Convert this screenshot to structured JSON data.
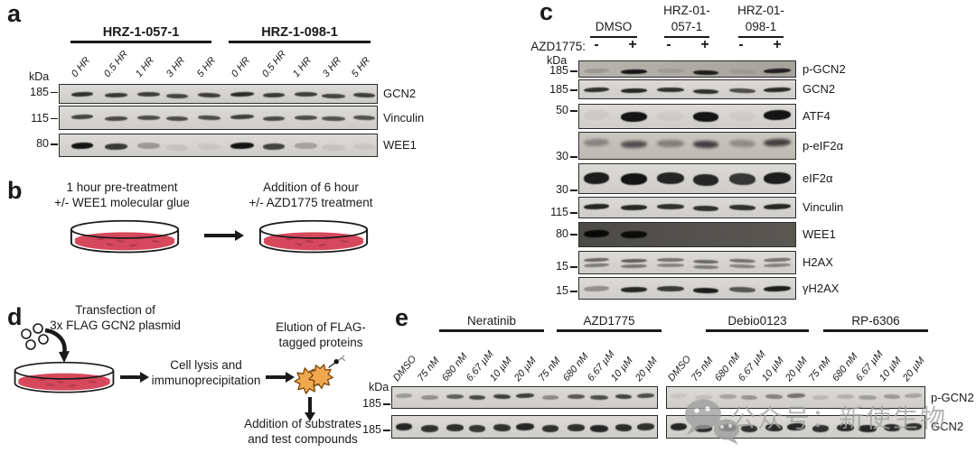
{
  "panels": {
    "a": {
      "label": "a",
      "group_headers": [
        "HRZ-1-057-1",
        "HRZ-1-098-1"
      ],
      "kda_label": "kDa",
      "lane_labels": [
        "0 HR",
        "0.5 HR",
        "1 HR",
        "3 HR",
        "5 HR",
        "0 HR",
        "0.5 HR",
        "1 HR",
        "3 HR",
        "5 HR"
      ],
      "strips": [
        {
          "marker": "185",
          "label": "GCN2",
          "bands": [
            0.85,
            0.8,
            0.78,
            0.75,
            0.78,
            0.88,
            0.8,
            0.78,
            0.75,
            0.78
          ]
        },
        {
          "marker": "115",
          "label": "Vinculin",
          "bands": [
            0.75,
            0.72,
            0.7,
            0.7,
            0.7,
            0.78,
            0.72,
            0.7,
            0.68,
            0.68
          ]
        },
        {
          "marker": "80",
          "label": "WEE1",
          "bands": [
            1,
            0.8,
            0.3,
            0.08,
            0.06,
            1,
            0.75,
            0.25,
            0.07,
            0.05
          ]
        }
      ]
    },
    "b": {
      "label": "b",
      "step1": [
        "1 hour pre-treatment",
        "+/- WEE1 molecular glue"
      ],
      "step2": [
        "Addition of 6 hour",
        "+/- AZD1775 treatment"
      ],
      "dish_color": "#d6495d"
    },
    "c": {
      "label": "c",
      "treatment_label": "AZD1775:",
      "kda_label": "kDa",
      "column_headers": [
        {
          "lines": [
            "DMSO"
          ]
        },
        {
          "lines": [
            "HRZ-01-",
            "057-1"
          ]
        },
        {
          "lines": [
            "HRZ-01-",
            "098-1"
          ]
        }
      ],
      "lane_signs": [
        "-",
        "+",
        "-",
        "+",
        "-",
        "+"
      ],
      "strips": [
        {
          "marker": "185",
          "label": "p-GCN2",
          "bands": [
            0.15,
            0.95,
            0.1,
            0.9,
            0.08,
            0.88
          ]
        },
        {
          "marker": "185",
          "label": "GCN2",
          "bands": [
            0.85,
            0.9,
            0.85,
            0.85,
            0.7,
            0.88
          ]
        },
        {
          "marker": "50",
          "label": "ATF4",
          "bands": [
            0.05,
            1,
            0.04,
            1,
            0.04,
            1
          ]
        },
        {
          "marker": "30",
          "label": "p-eIF2α",
          "bands": [
            0.35,
            0.65,
            0.38,
            0.75,
            0.3,
            0.75
          ]
        },
        {
          "marker": "30",
          "label": "eIF2α",
          "bands": [
            0.95,
            1,
            0.9,
            0.9,
            0.82,
            0.95
          ]
        },
        {
          "marker": "115",
          "label": "Vinculin",
          "bands": [
            0.9,
            0.9,
            0.85,
            0.85,
            0.85,
            0.9
          ]
        },
        {
          "marker": "80",
          "label": "WEE1",
          "bands": [
            0.95,
            0.9,
            0,
            0,
            0,
            0
          ]
        },
        {
          "marker": "15",
          "label": "H2AX",
          "bands": [
            0.55,
            0.6,
            0.5,
            0.55,
            0.5,
            0.5
          ]
        },
        {
          "marker": "15",
          "label": "γH2AX",
          "bands": [
            0.35,
            0.9,
            0.8,
            0.95,
            0.65,
            0.95
          ]
        }
      ]
    },
    "d": {
      "label": "d",
      "step_transfection": [
        "Transfection of",
        "3x FLAG GCN2 plasmid"
      ],
      "step_lysis": [
        "Cell lysis and",
        "immunoprecipitation"
      ],
      "step_elution": [
        "Elution of FLAG-",
        "tagged proteins"
      ],
      "step_substrates": [
        "Addition of substrates",
        "and test compounds"
      ]
    },
    "e": {
      "label": "e",
      "kda_label": "kDa",
      "group_headers": [
        "Neratinib",
        "AZD1775",
        "Debio0123",
        "RP-6306"
      ],
      "lane_labels_membrane1": [
        "DMSO",
        "75 nM",
        "680 nM",
        "6.67 µM",
        "10 µM",
        "20 µM",
        "75 nM",
        "680 nM",
        "6.67 µM",
        "10 µM",
        "20 µM"
      ],
      "lane_labels_membrane2": [
        "DMSO",
        "75 nM",
        "680 nM",
        "6.67 µM",
        "10 µM",
        "20 µM",
        "75 nM",
        "680 nM",
        "6.67 µM",
        "10 µM",
        "20 µM"
      ],
      "rows": [
        {
          "marker": "185",
          "label": "p-GCN2",
          "membrane1_bands": [
            0.3,
            0.35,
            0.6,
            0.72,
            0.78,
            0.78,
            0.38,
            0.65,
            0.7,
            0.75,
            0.7
          ],
          "membrane2_bands": [
            0.08,
            0.1,
            0.25,
            0.32,
            0.42,
            0.5,
            0.14,
            0.18,
            0.28,
            0.3,
            0.25
          ]
        },
        {
          "marker": "185",
          "label": "GCN2",
          "membrane1_bands": [
            0.9,
            0.85,
            0.85,
            0.82,
            0.85,
            0.9,
            0.85,
            0.85,
            0.9,
            0.88,
            0.85
          ],
          "membrane2_bands": [
            0.9,
            0.88,
            0.85,
            0.85,
            0.88,
            0.9,
            0.85,
            0.88,
            0.9,
            0.88,
            0.85
          ]
        }
      ]
    }
  },
  "watermark": {
    "icon": "wechat-icon",
    "text": "公众号：新使生物",
    "color": "#a2a2a2"
  }
}
